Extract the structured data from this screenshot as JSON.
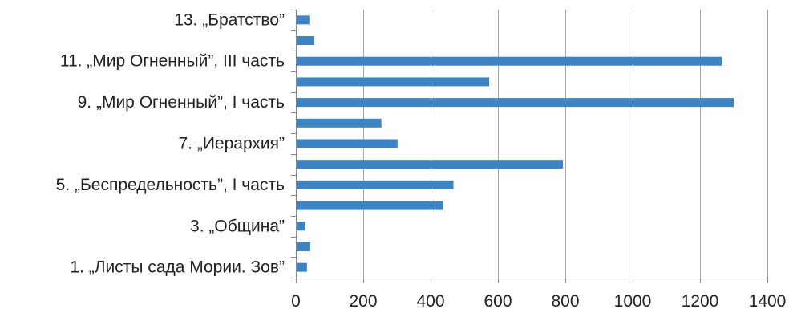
{
  "chart_data": {
    "type": "bar",
    "orientation": "horizontal",
    "categories": [
      "1. „Листы сада Мории. Зов”",
      "",
      "3. „Община”",
      "",
      "5. „Беспредельность”, I часть",
      "",
      "7. „Иерархия”",
      "",
      "9. „Мир Огненный”, I часть",
      "",
      "11. „Мир Огненный”, III часть",
      "",
      "13. „Братство”"
    ],
    "values": [
      33,
      42,
      28,
      437,
      468,
      793,
      302,
      254,
      1300,
      574,
      1265,
      55,
      40
    ],
    "xlim": [
      0,
      1400
    ],
    "xticks": [
      0,
      200,
      400,
      600,
      800,
      1000,
      1200,
      1400
    ],
    "grid": true,
    "legend": "none",
    "bar_color": "#3c84c4"
  }
}
